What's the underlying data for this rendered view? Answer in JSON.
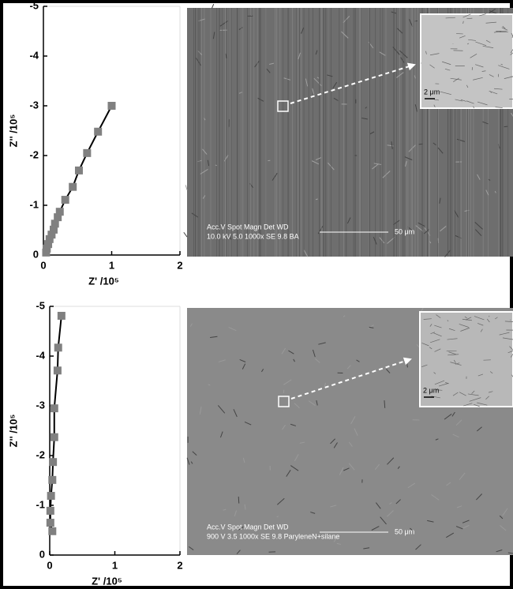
{
  "chart_data": [
    {
      "type": "scatter",
      "xlabel": "Z' /10⁵",
      "ylabel": "Z'' /10⁵",
      "x": [
        1.0,
        0.8,
        0.64,
        0.52,
        0.43,
        0.32,
        0.24,
        0.21,
        0.17,
        0.15,
        0.12,
        0.09,
        0.07,
        0.05,
        0.04
      ],
      "values": [
        -3.0,
        -2.48,
        -2.05,
        -1.7,
        -1.37,
        -1.11,
        -0.87,
        -0.76,
        -0.63,
        -0.51,
        -0.41,
        -0.32,
        -0.22,
        -0.13,
        -0.05
      ],
      "color": "#808080",
      "line_color": "#000000",
      "xlim": [
        0,
        2
      ],
      "xticks": [
        0,
        1,
        2
      ],
      "ylim": [
        0,
        -5
      ],
      "yticks": [
        0,
        -1,
        -2,
        -3,
        -4,
        -5
      ]
    },
    {
      "type": "scatter",
      "xlabel": "Z' /10⁵",
      "ylabel": "Z'' /10⁵",
      "x": [
        0.18,
        0.13,
        0.12,
        0.07,
        0.07,
        0.05,
        0.04,
        0.02,
        0.01,
        0.01,
        0.04
      ],
      "values": [
        -4.81,
        -4.17,
        -3.71,
        -2.95,
        -2.37,
        -1.87,
        -1.51,
        -1.19,
        -0.89,
        -0.65,
        -0.48
      ],
      "color": "#808080",
      "line_color": "#000000",
      "xlim": [
        0,
        2
      ],
      "xticks": [
        0,
        1,
        2
      ],
      "ylim": [
        0,
        -5
      ],
      "yticks": [
        0,
        -1,
        -2,
        -3,
        -4,
        -5
      ]
    }
  ],
  "images": [
    {
      "header": "Acc.V  Spot Magn   Det  WD",
      "settings": "10.0 kV  5.0  1000x   SE   9.8   BA",
      "scale": "50 μm",
      "inset_scale": "2 μm"
    },
    {
      "header": "Acc.V   Spot Magn    Det  WD",
      "settings": "900 V    3.5   1000x   SE   9.8   ParyleneN+silane",
      "scale": "50 μm",
      "inset_scale": "2 μm"
    }
  ]
}
